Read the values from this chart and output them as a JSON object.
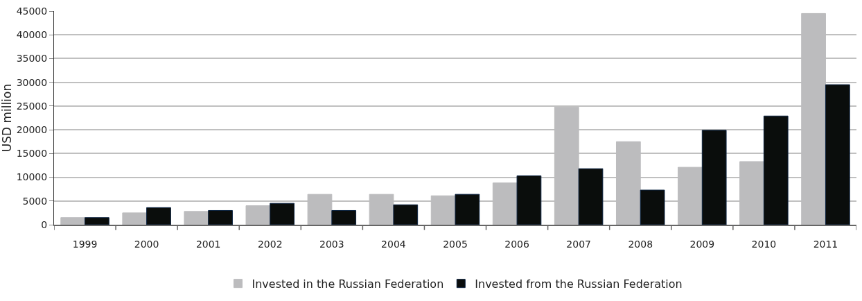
{
  "chart_data": {
    "type": "bar",
    "ylabel": "USD million",
    "categories": [
      "1999",
      "2000",
      "2001",
      "2002",
      "2003",
      "2004",
      "2005",
      "2006",
      "2007",
      "2008",
      "2009",
      "2010",
      "2011"
    ],
    "series": [
      {
        "name": "Invested in the Russian Federation",
        "color": "#bcbcbe",
        "values": [
          1500,
          2500,
          2800,
          4000,
          6400,
          6400,
          6100,
          8800,
          24800,
          17500,
          12100,
          13300,
          44500
        ]
      },
      {
        "name": "Invested from the Russian Federation",
        "color": "#0a0d0c",
        "values": [
          1500,
          3600,
          3000,
          4500,
          3000,
          4200,
          6400,
          10300,
          11800,
          7300,
          19900,
          22900,
          29500
        ]
      }
    ],
    "ylim": [
      0,
      45000
    ],
    "yticks": [
      0,
      5000,
      10000,
      15000,
      20000,
      25000,
      30000,
      35000,
      40000,
      45000
    ],
    "grid": "y",
    "legend": "bottom"
  }
}
